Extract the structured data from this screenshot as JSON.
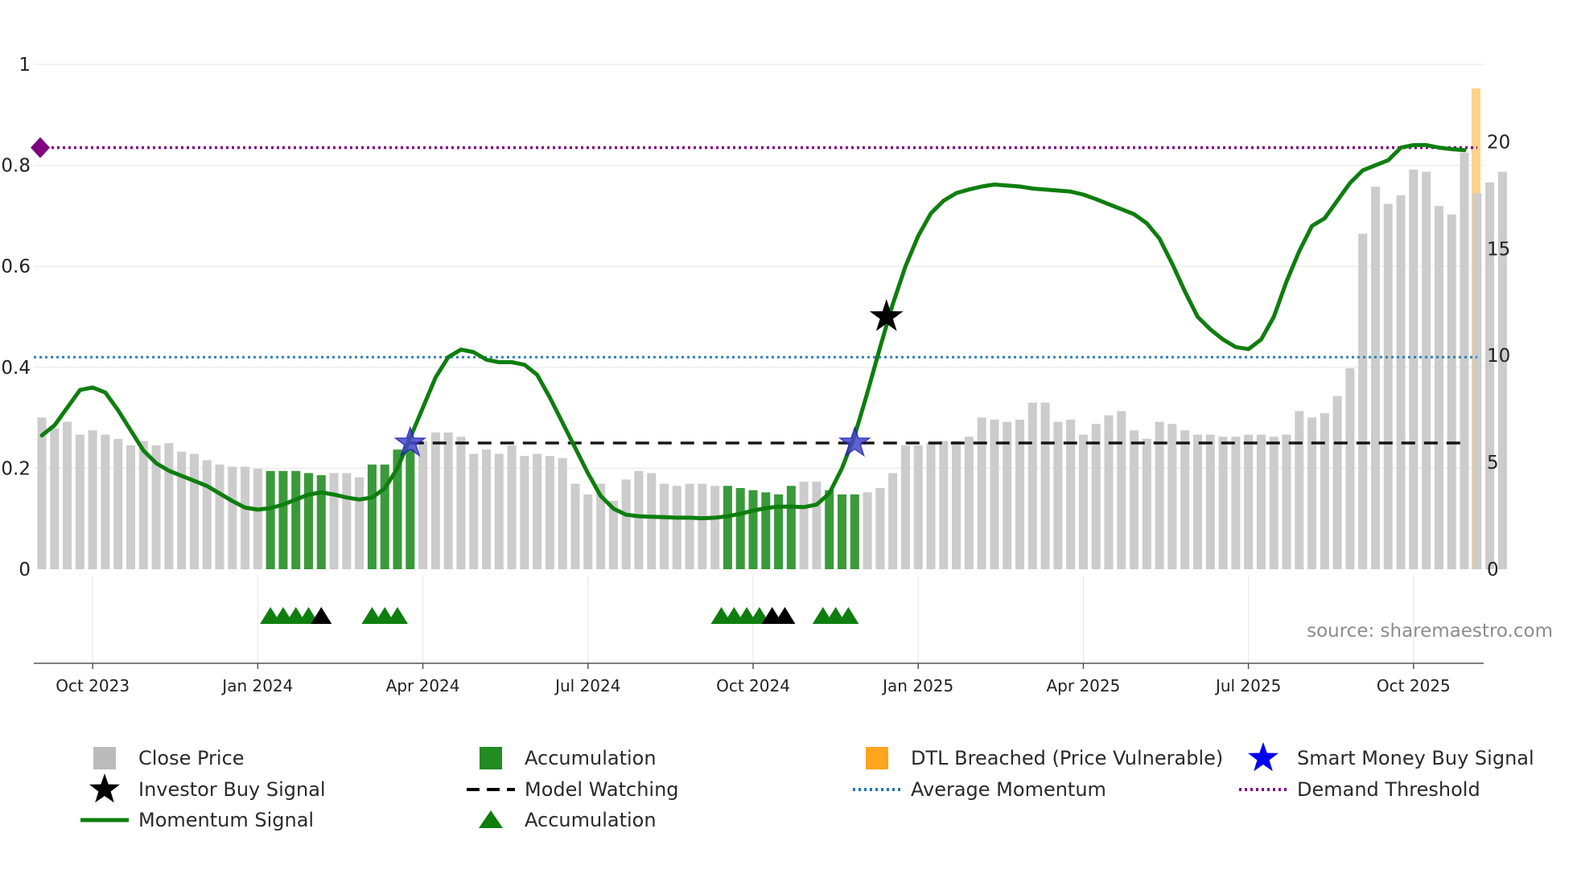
{
  "chart_data": {
    "type": "bar",
    "title": "",
    "xlabel": "",
    "ylabel": "",
    "x_tick_labels": [
      "Oct 2023",
      "Jan 2024",
      "Apr 2024",
      "Jul 2024",
      "Oct 2024",
      "Jan 2025",
      "Apr 2025",
      "Jul 2025",
      "Oct 2025"
    ],
    "x_range_weeks": [
      0,
      112
    ],
    "left_axis": {
      "ylim": [
        0,
        1
      ],
      "ticks": [
        "0",
        "0.2",
        "0.4",
        "0.6",
        "0.8",
        "1"
      ]
    },
    "right_axis": {
      "ylim": [
        0,
        22.5
      ],
      "ticks": [
        "0",
        "5",
        "10",
        "15",
        "20"
      ]
    },
    "close_price": [
      7.1,
      6.6,
      6.9,
      6.3,
      6.5,
      6.3,
      6.1,
      5.8,
      6.0,
      5.8,
      5.9,
      5.5,
      5.4,
      5.1,
      4.9,
      4.8,
      4.8,
      4.7,
      4.6,
      4.6,
      4.6,
      4.5,
      4.4,
      4.5,
      4.5,
      4.3,
      4.9,
      4.9,
      5.6,
      5.6,
      6.0,
      6.4,
      6.4,
      6.2,
      5.4,
      5.6,
      5.4,
      5.8,
      5.3,
      5.4,
      5.3,
      5.2,
      4.0,
      3.5,
      4.0,
      3.2,
      4.2,
      4.6,
      4.5,
      4.0,
      3.9,
      4.0,
      4.0,
      3.9,
      3.9,
      3.8,
      3.7,
      3.6,
      3.5,
      3.9,
      4.1,
      4.1,
      3.7,
      3.5,
      3.5,
      3.6,
      3.8,
      4.5,
      5.8,
      5.8,
      5.9,
      6.0,
      6.0,
      6.2,
      7.1,
      7.0,
      6.9,
      7.0,
      7.8,
      7.8,
      6.9,
      7.0,
      6.3,
      6.8,
      7.2,
      7.4,
      6.5,
      6.1,
      6.9,
      6.8,
      6.5,
      6.3,
      6.3,
      6.2,
      6.2,
      6.3,
      6.3,
      6.2,
      6.3,
      7.4,
      7.1,
      7.3,
      8.1,
      9.4,
      15.7,
      17.9,
      17.1,
      17.5,
      18.7,
      18.6,
      17.0,
      16.6,
      19.5,
      17.6,
      18.1,
      18.6
    ],
    "accumulation_weeks": [
      18,
      19,
      20,
      21,
      22,
      26,
      27,
      28,
      29,
      54,
      55,
      56,
      57,
      58,
      59,
      62,
      63,
      64
    ],
    "momentum_signal_points": [
      [
        0,
        0.265
      ],
      [
        1,
        0.285
      ],
      [
        2,
        0.32
      ],
      [
        3,
        0.355
      ],
      [
        4,
        0.36
      ],
      [
        5,
        0.35
      ],
      [
        6,
        0.315
      ],
      [
        7,
        0.275
      ],
      [
        8,
        0.235
      ],
      [
        9,
        0.21
      ],
      [
        10,
        0.195
      ],
      [
        11,
        0.185
      ],
      [
        12,
        0.175
      ],
      [
        13,
        0.165
      ],
      [
        14,
        0.15
      ],
      [
        15,
        0.135
      ],
      [
        16,
        0.122
      ],
      [
        17,
        0.118
      ],
      [
        18,
        0.121
      ],
      [
        19,
        0.128
      ],
      [
        20,
        0.138
      ],
      [
        21,
        0.148
      ],
      [
        22,
        0.152
      ],
      [
        23,
        0.148
      ],
      [
        24,
        0.142
      ],
      [
        25,
        0.138
      ],
      [
        26,
        0.142
      ],
      [
        27,
        0.16
      ],
      [
        28,
        0.2
      ],
      [
        29,
        0.26
      ],
      [
        30,
        0.32
      ],
      [
        31,
        0.38
      ],
      [
        32,
        0.42
      ],
      [
        33,
        0.435
      ],
      [
        34,
        0.43
      ],
      [
        35,
        0.415
      ],
      [
        36,
        0.41
      ],
      [
        37,
        0.41
      ],
      [
        38,
        0.405
      ],
      [
        39,
        0.385
      ],
      [
        40,
        0.34
      ],
      [
        41,
        0.29
      ],
      [
        42,
        0.24
      ],
      [
        43,
        0.19
      ],
      [
        44,
        0.145
      ],
      [
        45,
        0.12
      ],
      [
        46,
        0.108
      ],
      [
        47,
        0.105
      ],
      [
        48,
        0.104
      ],
      [
        49,
        0.103
      ],
      [
        50,
        0.102
      ],
      [
        51,
        0.102
      ],
      [
        52,
        0.101
      ],
      [
        53,
        0.102
      ],
      [
        54,
        0.105
      ],
      [
        55,
        0.11
      ],
      [
        56,
        0.116
      ],
      [
        57,
        0.121
      ],
      [
        58,
        0.124
      ],
      [
        59,
        0.124
      ],
      [
        60,
        0.123
      ],
      [
        61,
        0.128
      ],
      [
        62,
        0.15
      ],
      [
        63,
        0.2
      ],
      [
        64,
        0.265
      ],
      [
        65,
        0.35
      ],
      [
        66,
        0.44
      ],
      [
        67,
        0.525
      ],
      [
        68,
        0.6
      ],
      [
        69,
        0.66
      ],
      [
        70,
        0.705
      ],
      [
        71,
        0.73
      ],
      [
        72,
        0.745
      ],
      [
        73,
        0.752
      ],
      [
        74,
        0.758
      ],
      [
        75,
        0.762
      ],
      [
        76,
        0.76
      ],
      [
        77,
        0.758
      ],
      [
        78,
        0.754
      ],
      [
        79,
        0.752
      ],
      [
        80,
        0.75
      ],
      [
        81,
        0.748
      ],
      [
        82,
        0.742
      ],
      [
        83,
        0.733
      ],
      [
        84,
        0.723
      ],
      [
        85,
        0.713
      ],
      [
        86,
        0.703
      ],
      [
        87,
        0.685
      ],
      [
        88,
        0.655
      ],
      [
        89,
        0.605
      ],
      [
        90,
        0.55
      ],
      [
        91,
        0.5
      ],
      [
        92,
        0.475
      ],
      [
        93,
        0.455
      ],
      [
        94,
        0.44
      ],
      [
        95,
        0.436
      ],
      [
        96,
        0.455
      ],
      [
        97,
        0.5
      ],
      [
        98,
        0.57
      ],
      [
        99,
        0.63
      ],
      [
        100,
        0.68
      ],
      [
        101,
        0.695
      ],
      [
        102,
        0.73
      ],
      [
        103,
        0.765
      ],
      [
        104,
        0.79
      ],
      [
        105,
        0.8
      ],
      [
        106,
        0.81
      ],
      [
        107,
        0.835
      ],
      [
        108,
        0.84
      ],
      [
        109,
        0.84
      ],
      [
        110,
        0.835
      ],
      [
        111,
        0.832
      ],
      [
        112,
        0.83
      ]
    ],
    "model_watching": {
      "x_start": 29,
      "x_end": 112,
      "value": 0.25
    },
    "average_momentum": 0.42,
    "demand_threshold": 0.835,
    "dtl_breached_week": 112,
    "smart_money_buy_signals": [
      [
        29,
        0.25
      ],
      [
        64,
        0.25
      ]
    ],
    "investor_buy_signals": [
      [
        66.5,
        0.5
      ]
    ],
    "accumulation_markers": [
      {
        "week": 18,
        "color": "green"
      },
      {
        "week": 19,
        "color": "green"
      },
      {
        "week": 20,
        "color": "green"
      },
      {
        "week": 21,
        "color": "green"
      },
      {
        "week": 22,
        "color": "black"
      },
      {
        "week": 26,
        "color": "green"
      },
      {
        "week": 27,
        "color": "green"
      },
      {
        "week": 28,
        "color": "green"
      },
      {
        "week": 53.5,
        "color": "green"
      },
      {
        "week": 54.5,
        "color": "green"
      },
      {
        "week": 55.5,
        "color": "green"
      },
      {
        "week": 56.5,
        "color": "green"
      },
      {
        "week": 57.5,
        "color": "black"
      },
      {
        "week": 58.5,
        "color": "black"
      },
      {
        "week": 61.5,
        "color": "green"
      },
      {
        "week": 62.5,
        "color": "green"
      },
      {
        "week": 63.5,
        "color": "green"
      }
    ],
    "source_text": "source: sharemaestro.com",
    "legend": [
      {
        "label": "Close Price",
        "marker": "square",
        "color": "#bbbbbb"
      },
      {
        "label": "Accumulation",
        "marker": "square",
        "color": "#228b22"
      },
      {
        "label": "DTL Breached (Price Vulnerable)",
        "marker": "square",
        "color": "#ffa51e"
      },
      {
        "label": "Smart Money Buy Signal",
        "marker": "star",
        "color": "#0000ee"
      },
      {
        "label": "Investor Buy Signal",
        "marker": "star",
        "color": "#000000"
      },
      {
        "label": "Model Watching",
        "marker": "dash",
        "color": "#000000"
      },
      {
        "label": "Average Momentum",
        "marker": "dot",
        "color": "#1f77b4"
      },
      {
        "label": "Demand Threshold",
        "marker": "dot",
        "color": "#800080"
      },
      {
        "label": "Momentum Signal",
        "marker": "line",
        "color": "#0e7e0e"
      },
      {
        "label": "Accumulation",
        "marker": "triangle",
        "color": "#0e7e0e"
      }
    ],
    "colors": {
      "close_price": "#cccccc",
      "accumulation": "#3a9a3a",
      "momentum": "#0e7e0e",
      "model_watching": "#000000",
      "average_momentum": "#2f7fb5",
      "demand_threshold": "#800080",
      "dtl": "#fdd38a",
      "grid": "#e9e9e9",
      "axis": "#555555"
    }
  }
}
